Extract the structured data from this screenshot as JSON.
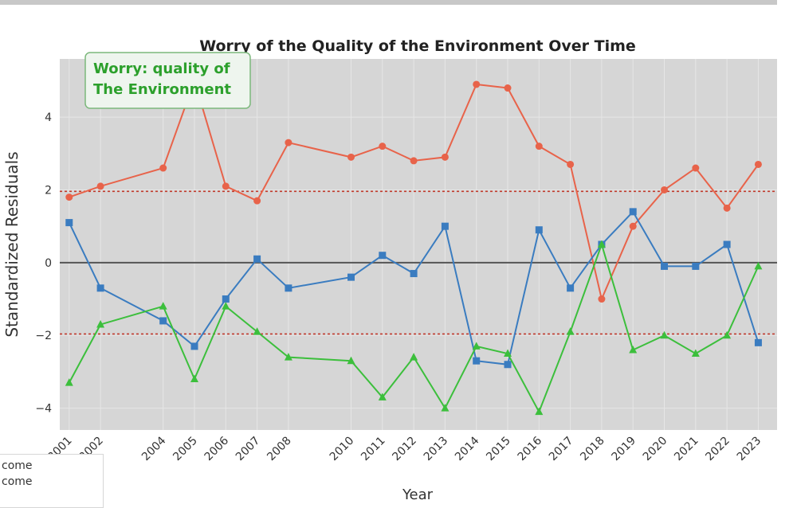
{
  "chart_data": {
    "type": "line",
    "title": "Worry of the Quality of the Environment Over Time",
    "xlabel": "Year",
    "ylabel": "Standardized Residuals",
    "ylim": [
      -4.6,
      5.6
    ],
    "yticks": [
      -4,
      -2,
      0,
      2,
      4
    ],
    "grid": true,
    "annotation": {
      "line1": "Worry: quality of",
      "line2": "The Environment",
      "color": "#2ca02c"
    },
    "reference_lines": [
      {
        "y": 1.96,
        "style": "dotted",
        "color": "#c0392b"
      },
      {
        "y": -1.96,
        "style": "dotted",
        "color": "#c0392b"
      },
      {
        "y": 0,
        "style": "solid",
        "color": "#555555"
      }
    ],
    "x": [
      2001,
      2002,
      2004,
      2005,
      2006,
      2007,
      2008,
      2010,
      2011,
      2012,
      2013,
      2014,
      2015,
      2016,
      2017,
      2018,
      2019,
      2020,
      2021,
      2022,
      2023
    ],
    "series": [
      {
        "color": "#e8634a",
        "marker": "circle",
        "values": [
          1.8,
          2.1,
          2.6,
          5.0,
          2.1,
          1.7,
          3.3,
          2.9,
          3.2,
          2.8,
          2.9,
          4.9,
          4.8,
          3.2,
          2.7,
          -1.0,
          1.0,
          2.0,
          2.6,
          1.5,
          2.7
        ]
      },
      {
        "color": "#3a7cc0",
        "marker": "square",
        "values": [
          1.1,
          -0.7,
          -1.6,
          -2.3,
          -1.0,
          0.1,
          -0.7,
          -0.4,
          0.2,
          -0.3,
          1.0,
          -2.7,
          -2.8,
          0.9,
          -0.7,
          0.5,
          1.4,
          -0.1,
          -0.1,
          0.5,
          -2.2
        ]
      },
      {
        "color": "#3cbf3c",
        "marker": "triangle",
        "values": [
          -3.3,
          -1.7,
          -1.2,
          -3.2,
          -1.2,
          -1.9,
          -2.6,
          -2.7,
          -3.7,
          -2.6,
          -4.0,
          -2.3,
          -2.5,
          -4.1,
          -1.9,
          0.5,
          -2.4,
          -2.0,
          -2.5,
          -2.0,
          -0.1
        ]
      }
    ]
  },
  "legend_fragment": [
    "come",
    "come"
  ]
}
